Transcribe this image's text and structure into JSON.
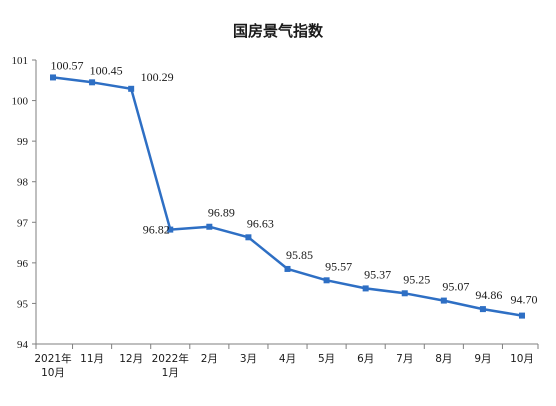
{
  "chart_data": {
    "type": "line",
    "title": "国房景气指数",
    "xlabel": "",
    "ylabel": "",
    "categories": [
      [
        "2021年",
        "10月"
      ],
      [
        "11月"
      ],
      [
        "12月"
      ],
      [
        "2022年",
        "1月"
      ],
      [
        "2月"
      ],
      [
        "3月"
      ],
      [
        "4月"
      ],
      [
        "5月"
      ],
      [
        "6月"
      ],
      [
        "7月"
      ],
      [
        "8月"
      ],
      [
        "9月"
      ],
      [
        "10月"
      ]
    ],
    "series": [
      {
        "values": [
          100.57,
          100.45,
          100.29,
          96.82,
          96.89,
          96.63,
          95.85,
          95.57,
          95.37,
          95.25,
          95.07,
          94.86,
          94.7
        ],
        "labels": [
          "100.57",
          "100.45",
          "100.29",
          "96.82",
          "96.89",
          "96.63",
          "95.85",
          "95.57",
          "95.37",
          "95.25",
          "95.07",
          "94.86",
          "94.70"
        ],
        "color": "#2e6fc4"
      }
    ],
    "ylim": [
      94,
      101
    ],
    "yticks": [
      "94",
      "95",
      "96",
      "97",
      "98",
      "99",
      "100",
      "101"
    ],
    "grid": false,
    "legend": "none",
    "axis_color": "#7f7f7f"
  }
}
